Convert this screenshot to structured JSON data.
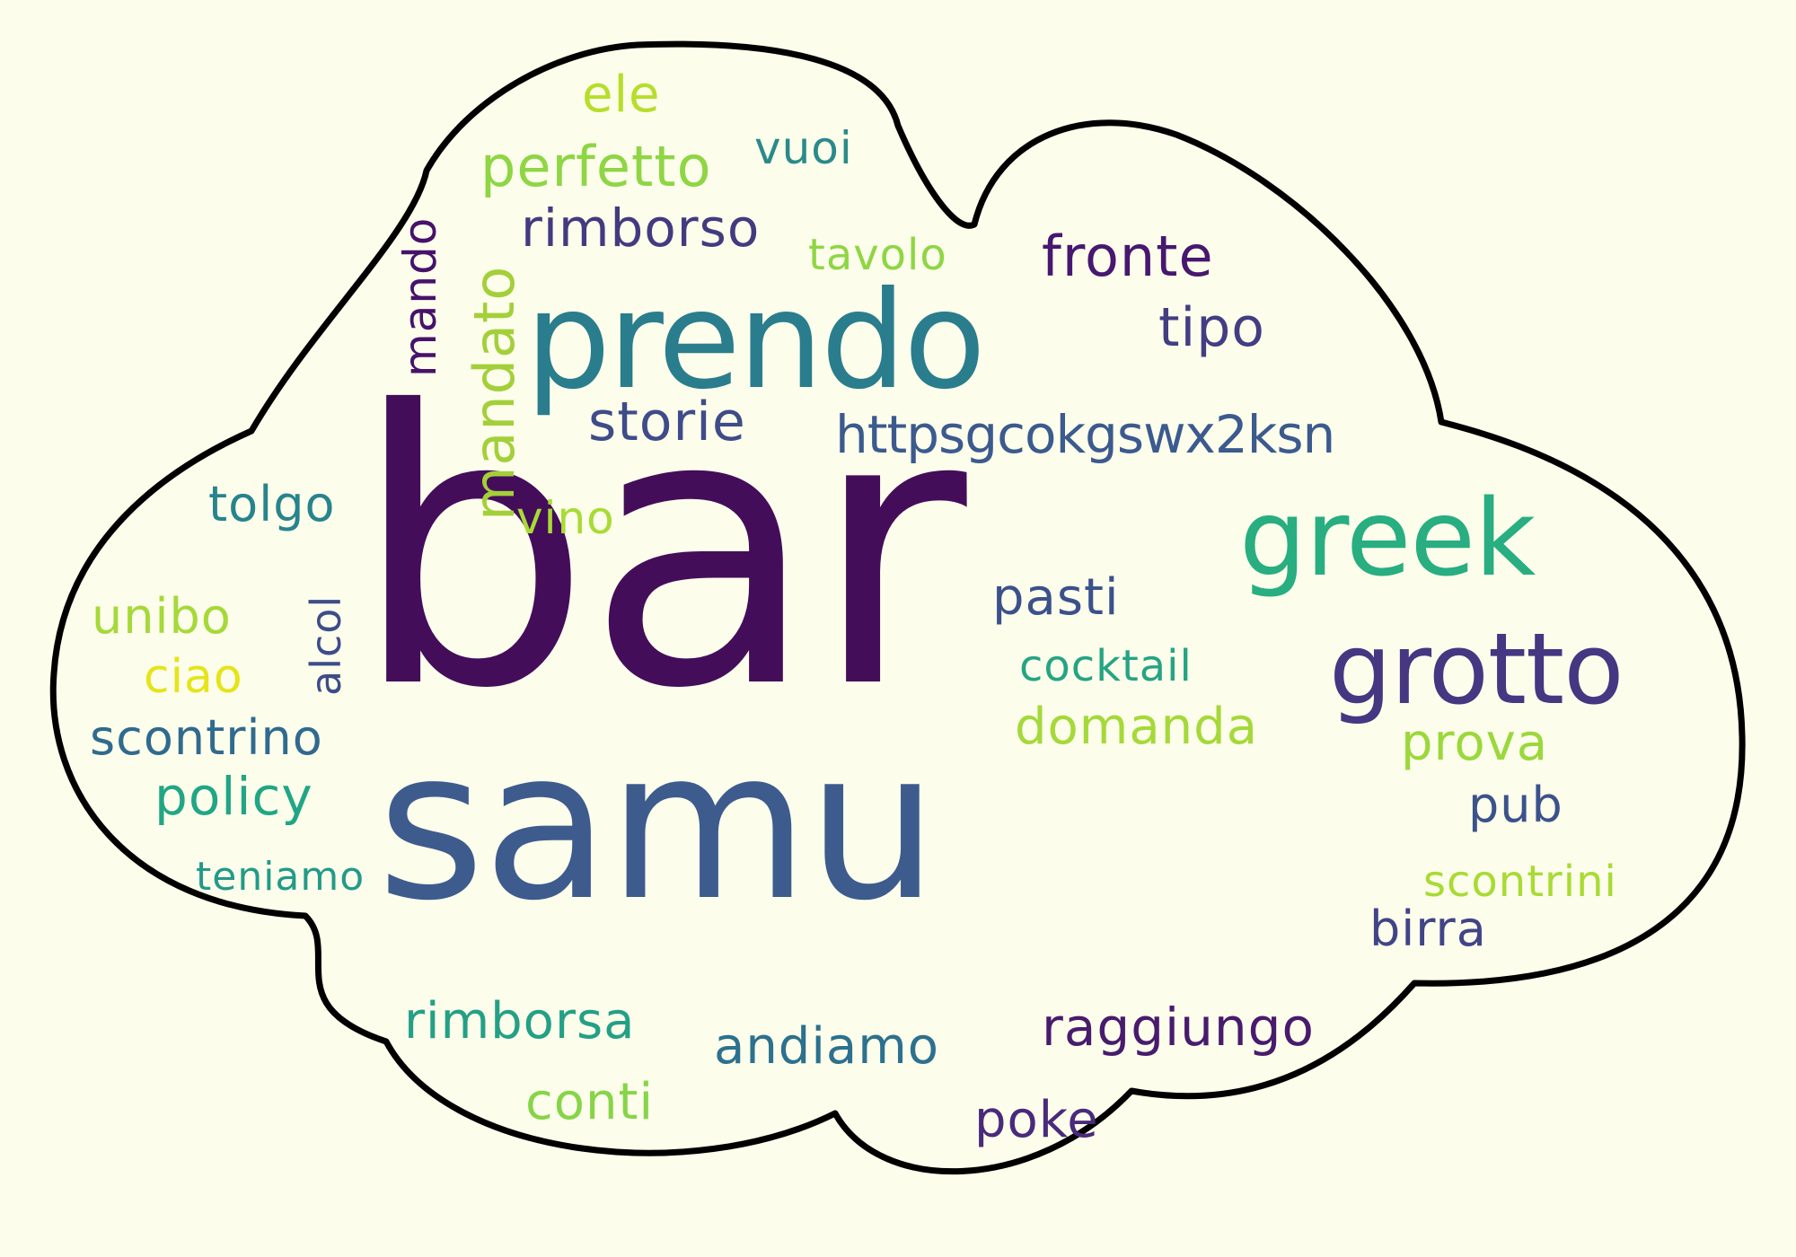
{
  "words": [
    {
      "text": "bar",
      "color": "#440d5a"
    },
    {
      "text": "samu",
      "color": "#3d5c8d"
    },
    {
      "text": "prendo",
      "color": "#2a7d8c"
    },
    {
      "text": "greek",
      "color": "#28ae80"
    },
    {
      "text": "grotto",
      "color": "#453781"
    },
    {
      "text": "https​gcokgswx2ksn",
      "color": "#3b5a8e"
    },
    {
      "text": "mandato",
      "color": "#a3d03a"
    },
    {
      "text": "perfetto",
      "color": "#8ed644"
    },
    {
      "text": "rimborso",
      "color": "#433b80"
    },
    {
      "text": "fronte",
      "color": "#46186f"
    },
    {
      "text": "tipo",
      "color": "#433d83"
    },
    {
      "text": "storie",
      "color": "#3f4c89"
    },
    {
      "text": "mando",
      "color": "#46126a"
    },
    {
      "text": "vuoi",
      "color": "#2a8a8a"
    },
    {
      "text": "ele",
      "color": "#b6de2a"
    },
    {
      "text": "tavolo",
      "color": "#8ed644"
    },
    {
      "text": "tolgo",
      "color": "#27848d"
    },
    {
      "text": "vino",
      "color": "#a8db34"
    },
    {
      "text": "alcol",
      "color": "#3d4d8a"
    },
    {
      "text": "unibo",
      "color": "#a5d93a"
    },
    {
      "text": "ciao",
      "color": "#e5e419"
    },
    {
      "text": "scontrino",
      "color": "#306a8e"
    },
    {
      "text": "policy",
      "color": "#21a685"
    },
    {
      "text": "teniamo",
      "color": "#239a89"
    },
    {
      "text": "pasti",
      "color": "#3b518b"
    },
    {
      "text": "cocktail",
      "color": "#25a483"
    },
    {
      "text": "domanda",
      "color": "#a5d93a"
    },
    {
      "text": "prova",
      "color": "#9bd83c"
    },
    {
      "text": "pub",
      "color": "#3b528b"
    },
    {
      "text": "scontrini",
      "color": "#a8db34"
    },
    {
      "text": "birra",
      "color": "#414487"
    },
    {
      "text": "raggiungo",
      "color": "#481b6d"
    },
    {
      "text": "rimborsa",
      "color": "#23a085"
    },
    {
      "text": "andiamo",
      "color": "#2c718e"
    },
    {
      "text": "conti",
      "color": "#86d549"
    },
    {
      "text": "poke",
      "color": "#4a2a7b"
    }
  ],
  "colors": {
    "background": "#fdfdeb",
    "cloud_fill": "#fdfdeb",
    "cloud_stroke": "#000000"
  }
}
